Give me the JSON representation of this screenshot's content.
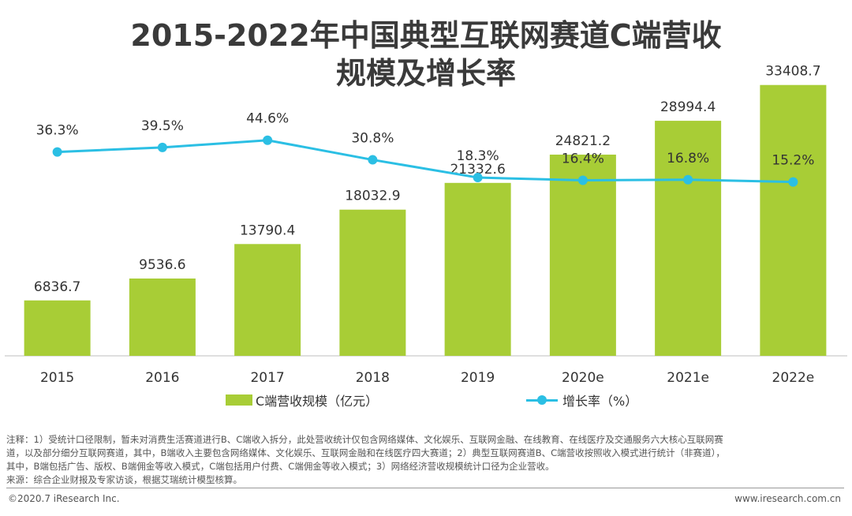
{
  "title_line1": "2015-2022年中国典型互联网赛道C端营收",
  "title_line2": "规模及增长率",
  "chart_data": {
    "type": "bar",
    "categories": [
      "2015",
      "2016",
      "2017",
      "2018",
      "2019",
      "2020e",
      "2021e",
      "2022e"
    ],
    "series": [
      {
        "name": "C端营收规模（亿元）",
        "type": "bar",
        "values": [
          6836.7,
          9536.6,
          13790.4,
          18032.9,
          21332.6,
          24821.2,
          28994.4,
          33408.7
        ],
        "labels": [
          "6836.7",
          "9536.6",
          "13790.4",
          "18032.9",
          "21332.6",
          "24821.2",
          "28994.4",
          "33408.7"
        ]
      },
      {
        "name": "增长率（%）",
        "type": "line",
        "values": [
          36.3,
          39.5,
          44.6,
          30.8,
          18.3,
          16.4,
          16.8,
          15.2
        ],
        "labels": [
          "36.3%",
          "39.5%",
          "44.6%",
          "30.8%",
          "18.3%",
          "16.4%",
          "16.8%",
          "15.2%"
        ]
      }
    ],
    "ylim": [
      0,
      40000
    ],
    "rate_ylim": [
      0,
      60
    ],
    "legend_position": "bottom",
    "grid": false
  },
  "legend": {
    "bar_label": "C端营收规模（亿元）",
    "line_label": "增长率（%）"
  },
  "colors": {
    "bar": "#a8cd36",
    "line": "#2bbfe4",
    "axis": "#bfbfbf"
  },
  "note": {
    "line1": "注释：1）受统计口径限制，暂未对消费生活赛道进行B、C端收入拆分，此处营收统计仅包含网络媒体、文化娱乐、互联网金融、在线教育、在线医疗及交通服务六大核心互联网赛",
    "line2": "道，以及部分细分互联网赛道，其中，B端收入主要包含网络媒体、文化娱乐、互联网金融和在线医疗四大赛道；2）典型互联网赛道B、C端营收按照收入模式进行统计（非赛道），",
    "line3": "其中，B端包括广告、版权、B端佣金等收入模式，C端包括用户付费、C端佣金等收入模式；3）网络经济营收规模统计口径为企业营收。",
    "line4": "来源：综合企业财报及专家访谈，根据艾瑞统计模型核算。"
  },
  "footer": {
    "copyright": "©2020.7 iResearch Inc.",
    "website": "www.iresearch.com.cn"
  }
}
